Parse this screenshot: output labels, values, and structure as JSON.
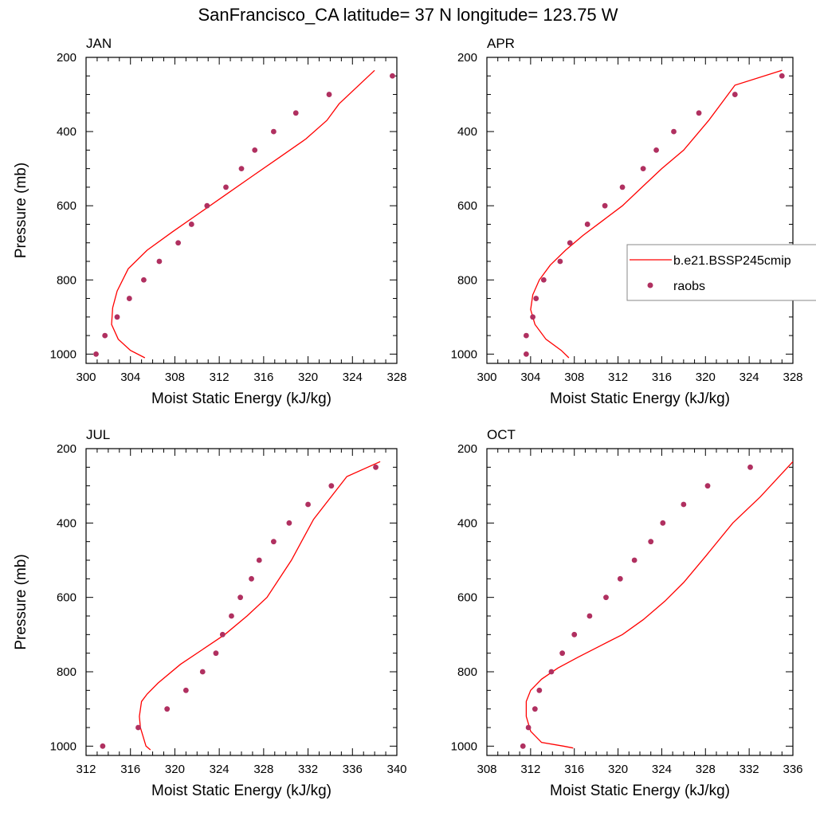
{
  "figure_title": "SanFrancisco_CA  latitude= 37 N longitude= 123.75 W",
  "legend": {
    "model_label": "b.e21.BSSP245cmip",
    "obs_label": "raobs"
  },
  "colors": {
    "model_line": "#ff0000",
    "obs_marker": "#b03060"
  },
  "chart_data": [
    {
      "type": "line",
      "title": "JAN",
      "xlabel": "Moist Static Energy (kJ/kg)",
      "ylabel": "Pressure (mb)",
      "xlim": [
        300,
        328
      ],
      "ylim": [
        1025,
        200
      ],
      "xticks": [
        300,
        304,
        308,
        312,
        316,
        320,
        324,
        328
      ],
      "yticks": [
        200,
        400,
        600,
        800,
        1000
      ],
      "series": [
        {
          "name": "b.e21.BSSP245cmip",
          "style": "line",
          "x": [
            305.3,
            304.0,
            302.9,
            302.3,
            302.4,
            302.8,
            303.8,
            305.5,
            307.8,
            310.2,
            312.6,
            315.0,
            317.4,
            319.8,
            321.7,
            322.8,
            326.0
          ],
          "y": [
            1010,
            990,
            960,
            920,
            875,
            830,
            770,
            720,
            670,
            620,
            570,
            520,
            470,
            420,
            370,
            325,
            235
          ]
        },
        {
          "name": "raobs",
          "style": "markers",
          "x": [
            300.9,
            301.7,
            302.8,
            303.9,
            305.2,
            306.6,
            308.3,
            309.5,
            310.9,
            312.6,
            314.0,
            315.2,
            316.9,
            318.9,
            321.9,
            327.6
          ],
          "y": [
            1000,
            950,
            900,
            850,
            800,
            750,
            700,
            650,
            600,
            550,
            500,
            450,
            400,
            350,
            300,
            250
          ]
        }
      ]
    },
    {
      "type": "line",
      "title": "APR",
      "xlabel": "Moist Static Energy (kJ/kg)",
      "ylabel": "",
      "xlim": [
        300,
        328
      ],
      "ylim": [
        1025,
        200
      ],
      "xticks": [
        300,
        304,
        308,
        312,
        316,
        320,
        324,
        328
      ],
      "yticks": [
        200,
        400,
        600,
        800,
        1000
      ],
      "series": [
        {
          "name": "b.e21.BSSP245cmip",
          "style": "line",
          "x": [
            307.5,
            306.8,
            305.4,
            304.4,
            304.0,
            304.2,
            304.8,
            305.8,
            307.2,
            308.8,
            310.6,
            312.4,
            314.2,
            316.0,
            318.0,
            320.3,
            322.7,
            327.0
          ],
          "y": [
            1010,
            990,
            960,
            920,
            880,
            840,
            800,
            760,
            720,
            680,
            640,
            600,
            550,
            500,
            450,
            370,
            275,
            235
          ]
        },
        {
          "name": "raobs",
          "style": "markers",
          "x": [
            303.6,
            303.6,
            304.2,
            304.5,
            305.2,
            306.7,
            307.6,
            309.2,
            310.8,
            312.4,
            314.3,
            315.5,
            317.1,
            319.4,
            322.7,
            327.0
          ],
          "y": [
            1000,
            950,
            900,
            850,
            800,
            750,
            700,
            650,
            600,
            550,
            500,
            450,
            400,
            350,
            300,
            250
          ]
        }
      ]
    },
    {
      "type": "line",
      "title": "JUL",
      "xlabel": "Moist Static Energy (kJ/kg)",
      "ylabel": "Pressure (mb)",
      "xlim": [
        312,
        340
      ],
      "ylim": [
        1025,
        200
      ],
      "xticks": [
        312,
        316,
        320,
        324,
        328,
        332,
        336,
        340
      ],
      "yticks": [
        200,
        400,
        600,
        800,
        1000
      ],
      "series": [
        {
          "name": "b.e21.BSSP245cmip",
          "style": "line",
          "x": [
            317.8,
            317.4,
            317.3,
            317.1,
            316.9,
            316.8,
            317.0,
            317.5,
            318.5,
            320.5,
            322.5,
            324.5,
            326.5,
            328.3,
            330.5,
            332.5,
            335.5,
            338.5
          ],
          "y": [
            1010,
            1000,
            990,
            970,
            950,
            920,
            880,
            860,
            830,
            780,
            740,
            700,
            650,
            600,
            500,
            390,
            275,
            235
          ]
        },
        {
          "name": "raobs",
          "style": "markers",
          "x": [
            313.5,
            316.7,
            319.3,
            321.0,
            322.5,
            323.7,
            324.3,
            325.1,
            325.9,
            326.9,
            327.6,
            328.9,
            330.3,
            332.0,
            334.1,
            338.1
          ],
          "y": [
            1000,
            950,
            900,
            850,
            800,
            750,
            700,
            650,
            600,
            550,
            500,
            450,
            400,
            350,
            300,
            250
          ]
        }
      ]
    },
    {
      "type": "line",
      "title": "OCT",
      "xlabel": "Moist Static Energy (kJ/kg)",
      "ylabel": "",
      "xlim": [
        308,
        336
      ],
      "ylim": [
        1025,
        200
      ],
      "xticks": [
        308,
        312,
        316,
        320,
        324,
        328,
        332,
        336
      ],
      "yticks": [
        200,
        400,
        600,
        800,
        1000
      ],
      "series": [
        {
          "name": "b.e21.BSSP245cmip",
          "style": "line",
          "x": [
            315.9,
            315.0,
            313.0,
            312.0,
            311.6,
            311.6,
            312.0,
            313.0,
            314.5,
            316.4,
            318.4,
            320.4,
            322.3,
            324.3,
            326.0,
            328.0,
            330.5,
            333.0,
            336.0
          ],
          "y": [
            1005,
            1000,
            990,
            960,
            920,
            880,
            850,
            820,
            790,
            760,
            730,
            700,
            660,
            610,
            560,
            490,
            400,
            330,
            235
          ]
        },
        {
          "name": "raobs",
          "style": "markers",
          "x": [
            311.3,
            311.8,
            312.4,
            312.8,
            313.9,
            314.9,
            316.0,
            317.4,
            318.9,
            320.2,
            321.5,
            323.0,
            324.1,
            326.0,
            328.2,
            332.1
          ],
          "y": [
            1000,
            950,
            900,
            850,
            800,
            750,
            700,
            650,
            600,
            550,
            500,
            450,
            400,
            350,
            300,
            250
          ]
        }
      ]
    }
  ]
}
